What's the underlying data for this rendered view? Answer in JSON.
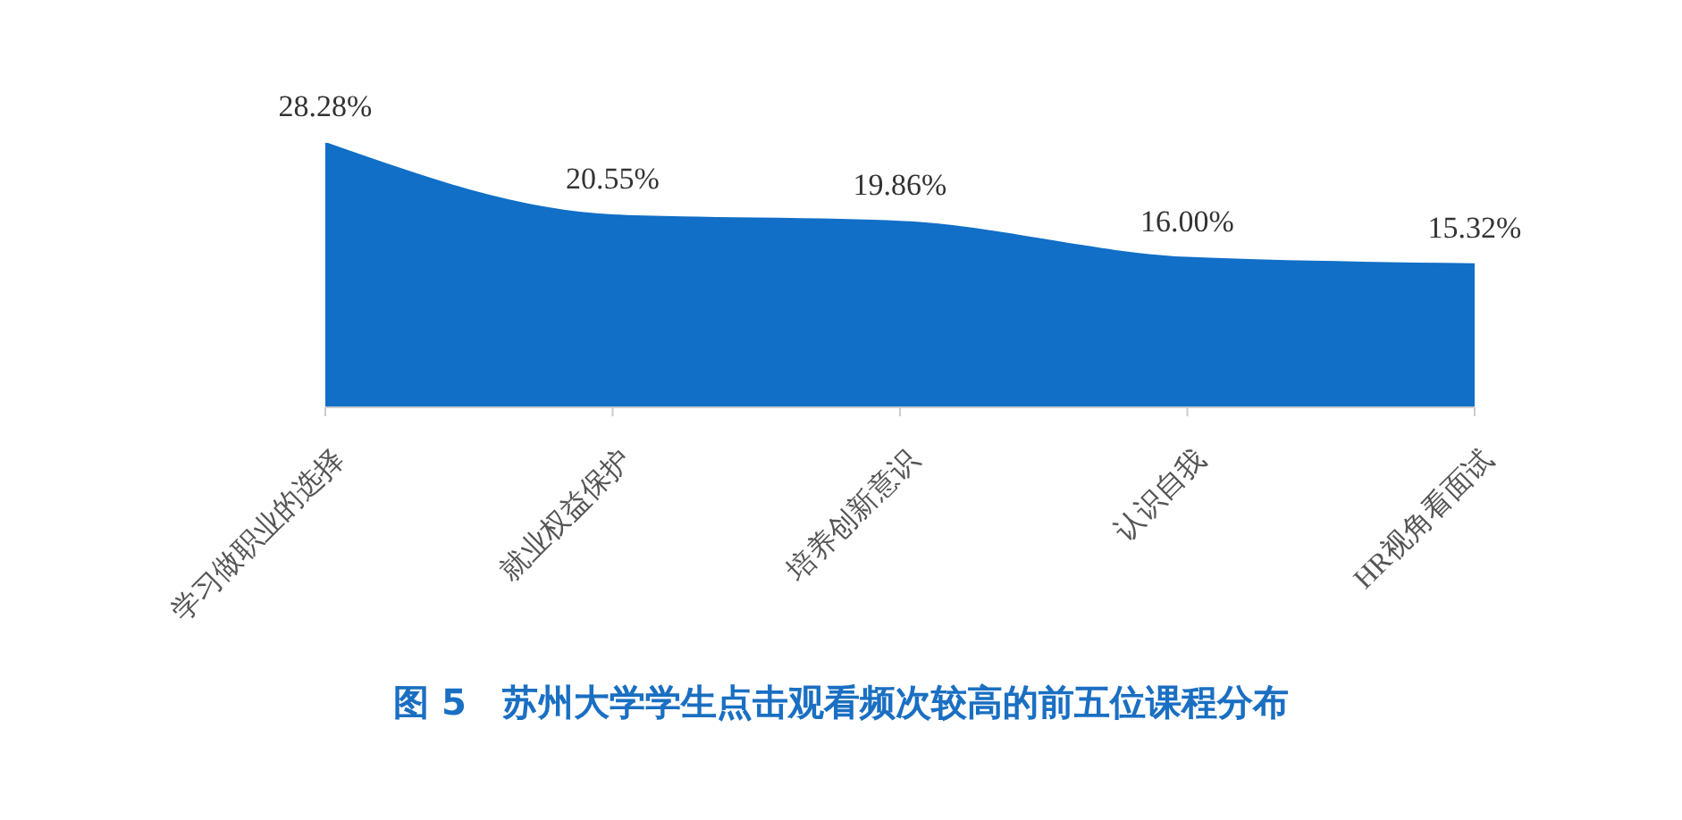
{
  "chart_data": {
    "type": "area",
    "title": "图 5　苏州大学学生点击观看频次较高的前五位课程分布",
    "categories": [
      "学习做职业的选择",
      "就业权益保护",
      "培养创新意识",
      "认识自我",
      "HR视角看面试"
    ],
    "values": [
      28.28,
      20.55,
      19.86,
      16.0,
      15.32
    ],
    "color": "#116fc7",
    "value_labels": [
      "28.28%",
      "20.55%",
      "19.86%",
      "16.00%",
      "15.32%"
    ],
    "tick_labels": "x"
  }
}
